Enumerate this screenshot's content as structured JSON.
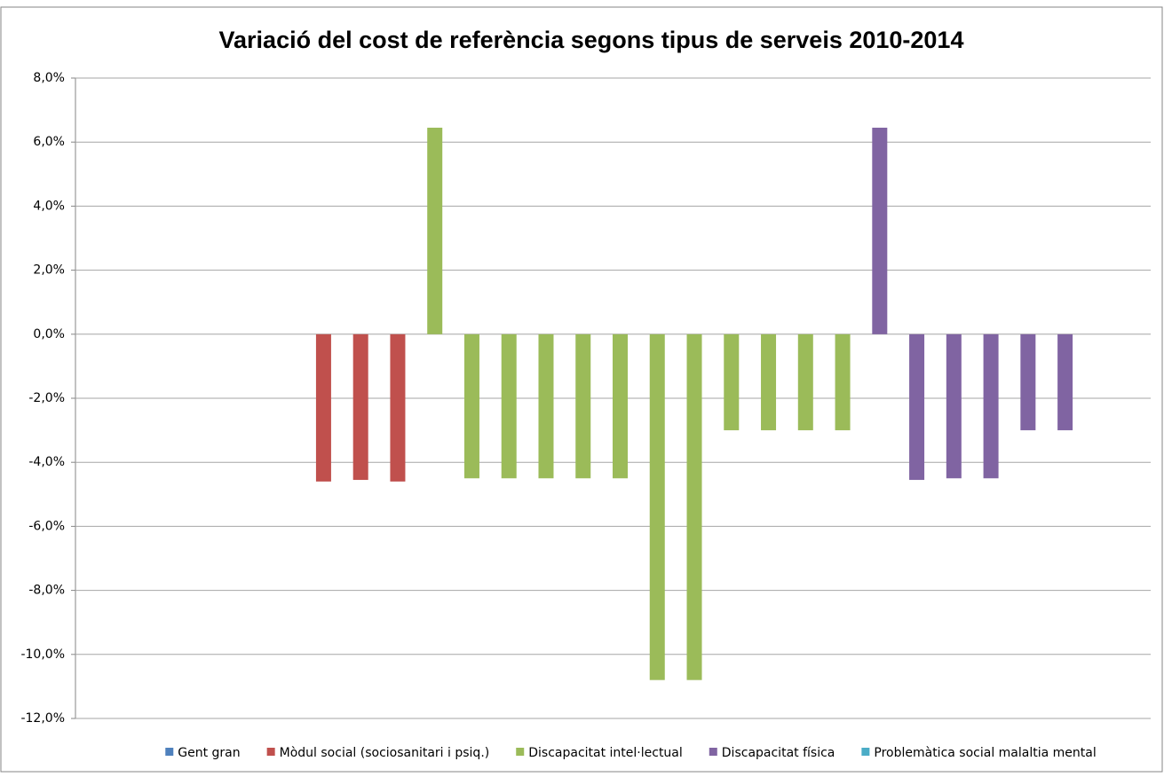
{
  "chart_data": {
    "type": "bar",
    "title": "Variació del cost de referència segons tipus de serveis 2010-2014",
    "categories": [
      null,
      null,
      null,
      null,
      null,
      null,
      null,
      null,
      null,
      null,
      null,
      null,
      null,
      null,
      null,
      null,
      null,
      null,
      null,
      null,
      null,
      null,
      null,
      null,
      null,
      null,
      null,
      null,
      null
    ],
    "series": [
      {
        "name": "Gent gran",
        "color": "#4f81bd",
        "values": [
          null,
          null,
          null,
          null,
          null,
          null,
          null,
          null,
          null,
          null,
          null,
          null,
          null,
          null,
          null,
          null,
          null,
          null,
          null,
          null,
          null,
          null,
          null,
          null,
          null,
          null,
          null,
          null,
          null
        ]
      },
      {
        "name": "Mòdul social (sociosanitari i psiq.)",
        "color": "#c0504d",
        "values": [
          null,
          null,
          null,
          null,
          null,
          null,
          -4.6,
          -4.55,
          -4.6,
          null,
          null,
          null,
          null,
          null,
          null,
          null,
          null,
          null,
          null,
          null,
          null,
          null,
          null,
          null,
          null,
          null,
          null,
          null,
          null
        ]
      },
      {
        "name": "Discapacitat intel·lectual",
        "color": "#9bbb59",
        "values": [
          null,
          null,
          null,
          null,
          null,
          null,
          null,
          null,
          null,
          6.45,
          -4.5,
          -4.5,
          -4.5,
          -4.5,
          -4.5,
          -10.8,
          -10.8,
          -3,
          -3,
          -3,
          -3,
          null,
          null,
          null,
          null,
          null,
          null,
          null,
          null
        ]
      },
      {
        "name": "Discapacitat física",
        "color": "#8064a2",
        "values": [
          null,
          null,
          null,
          null,
          null,
          null,
          null,
          null,
          null,
          null,
          null,
          null,
          null,
          null,
          null,
          null,
          null,
          null,
          null,
          null,
          null,
          6.45,
          -4.55,
          -4.5,
          -4.5,
          -3,
          -3,
          null,
          null
        ]
      },
      {
        "name": "Problemàtica social malaltia mental",
        "color": "#4bacc6",
        "values": [
          null,
          null,
          null,
          null,
          null,
          null,
          null,
          null,
          null,
          null,
          null,
          null,
          null,
          null,
          null,
          null,
          null,
          null,
          null,
          null,
          null,
          null,
          null,
          null,
          null,
          null,
          null,
          null,
          null
        ]
      }
    ],
    "ylim": [
      -12,
      8
    ],
    "yticks": [
      {
        "value": 8,
        "label": "8,0%"
      },
      {
        "value": 6,
        "label": "6,0%"
      },
      {
        "value": 4,
        "label": "4,0%"
      },
      {
        "value": 2,
        "label": "2,0%"
      },
      {
        "value": 0,
        "label": "0,0%"
      },
      {
        "value": -2,
        "label": "-2,0%"
      },
      {
        "value": -4,
        "label": "-4,0%"
      },
      {
        "value": -6,
        "label": "-6,0%"
      },
      {
        "value": -8,
        "label": "-8,0%"
      },
      {
        "value": -10,
        "label": "-10,0%"
      },
      {
        "value": -12,
        "label": "-12,0%"
      }
    ],
    "grid": true,
    "legend": "bottom"
  }
}
